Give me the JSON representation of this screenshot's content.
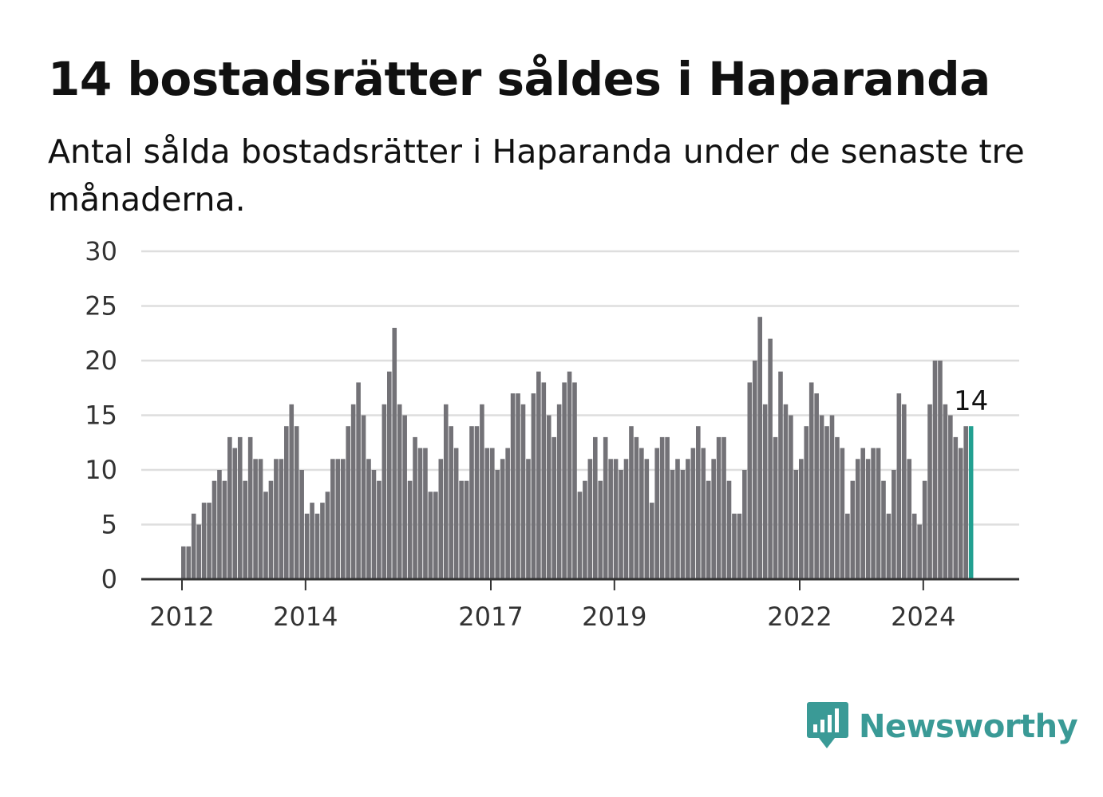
{
  "header": {
    "title": "14 bostadsrätter såldes i Haparanda",
    "subtitle": "Antal sålda bostadsrätter i Haparanda under de senaste tre månaderna."
  },
  "brand": {
    "name": "Newsworthy",
    "color": "#3a9a96",
    "icon": "newsworthy-logo-icon"
  },
  "colors": {
    "bar": "#737277",
    "highlight": "#22a091",
    "grid": "#dedede",
    "axis": "#333333"
  },
  "chart_data": {
    "type": "bar",
    "title": "",
    "xlabel": "",
    "ylabel": "",
    "ylim": [
      0,
      30
    ],
    "yticks": [
      0,
      5,
      10,
      15,
      20,
      25,
      30
    ],
    "x_start": "2012-01",
    "xtick_labels": [
      "2012",
      "2014",
      "2017",
      "2019",
      "2022",
      "2024"
    ],
    "grid": true,
    "legend": "none",
    "highlight_last": true,
    "last_value_label": "14",
    "values": [
      3,
      3,
      6,
      5,
      7,
      7,
      9,
      10,
      9,
      13,
      12,
      13,
      9,
      13,
      11,
      11,
      8,
      9,
      11,
      11,
      14,
      16,
      14,
      10,
      6,
      7,
      6,
      7,
      8,
      11,
      11,
      11,
      14,
      16,
      18,
      15,
      11,
      10,
      9,
      16,
      19,
      23,
      16,
      15,
      9,
      13,
      12,
      12,
      8,
      8,
      11,
      16,
      14,
      12,
      9,
      9,
      14,
      14,
      16,
      12,
      12,
      10,
      11,
      12,
      17,
      17,
      16,
      11,
      17,
      19,
      18,
      15,
      13,
      16,
      18,
      19,
      18,
      8,
      9,
      11,
      13,
      9,
      13,
      11,
      11,
      10,
      11,
      14,
      13,
      12,
      11,
      7,
      12,
      13,
      13,
      10,
      11,
      10,
      11,
      12,
      14,
      12,
      9,
      11,
      13,
      13,
      9,
      6,
      6,
      10,
      18,
      20,
      24,
      16,
      22,
      13,
      19,
      16,
      15,
      10,
      11,
      14,
      18,
      17,
      15,
      14,
      15,
      13,
      12,
      6,
      9,
      11,
      12,
      11,
      12,
      12,
      9,
      6,
      10,
      17,
      16,
      11,
      6,
      5,
      9,
      16,
      20,
      20,
      16,
      15,
      13,
      12,
      14,
      14
    ]
  }
}
